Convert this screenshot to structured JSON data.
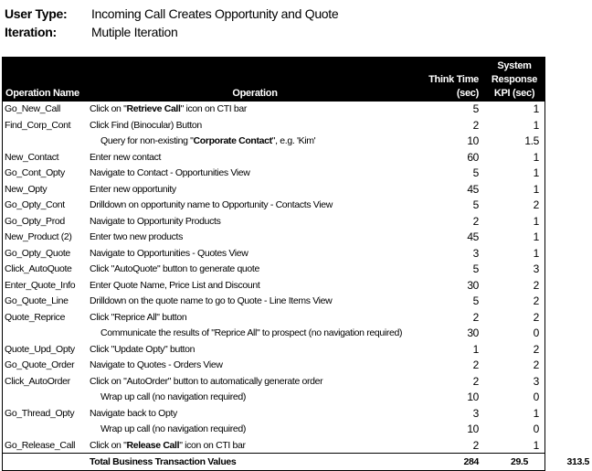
{
  "header": {
    "user_type_label": "User Type:",
    "user_type": "Incoming Call Creates Opportunity and Quote",
    "iteration_label": "Iteration:",
    "iteration": "Mutiple Iteration"
  },
  "table": {
    "columns": {
      "name": "Operation Name",
      "operation": "Operation",
      "think": [
        "Think Time",
        "(sec)"
      ],
      "kpi": [
        "System",
        "Response",
        "KPI (sec)"
      ]
    },
    "rows": [
      [
        "Go_New_Call",
        [
          "Click on \"",
          "Retrieve Call",
          "\" icon on CTI bar"
        ],
        5,
        1
      ],
      [
        "Find_Corp_Cont",
        [
          "Click Find (Binocular) Button"
        ],
        2,
        1
      ],
      [
        null,
        [
          "Query for non-existing \"",
          "Corporate Contact",
          "\", e.g. 'Kim'"
        ],
        10,
        1.5
      ],
      [
        "New_Contact",
        [
          "Enter new contact"
        ],
        60,
        1
      ],
      [
        "Go_Cont_Opty",
        [
          "Navigate to Contact - Opportunities View"
        ],
        5,
        1
      ],
      [
        "New_Opty",
        [
          "Enter new opportunity"
        ],
        45,
        1
      ],
      [
        "Go_Opty_Cont",
        [
          "Drilldown on opportunity name to Opportunity - Contacts View"
        ],
        5,
        2
      ],
      [
        "Go_Opty_Prod",
        [
          "Navigate to Opportunity Products"
        ],
        2,
        1
      ],
      [
        "New_Product (2)",
        [
          "Enter two new products"
        ],
        45,
        1
      ],
      [
        "Go_Opty_Quote",
        [
          "Navigate to Opportunities - Quotes View"
        ],
        3,
        1
      ],
      [
        "Click_AutoQuote",
        [
          "Click \"AutoQuote\" button to generate quote"
        ],
        5,
        3
      ],
      [
        "Enter_Quote_Info",
        [
          "Enter Quote Name, Price List and Discount"
        ],
        30,
        2
      ],
      [
        "Go_Quote_Line",
        [
          "Drilldown on the quote name to go to Quote - Line Items View"
        ],
        5,
        2
      ],
      [
        "Quote_Reprice",
        [
          "Click \"Reprice All\" button"
        ],
        2,
        2
      ],
      [
        null,
        [
          "Communicate the results of \"Reprice All\" to prospect (no navigation required)"
        ],
        30,
        0
      ],
      [
        "Quote_Upd_Opty",
        [
          "Click \"Update Opty\" button"
        ],
        1,
        2
      ],
      [
        "Go_Quote_Order",
        [
          "Navigate to Quotes - Orders View"
        ],
        2,
        2
      ],
      [
        "Click_AutoOrder",
        [
          "Click on \"AutoOrder\" button to automatically generate order"
        ],
        2,
        3
      ],
      [
        null,
        [
          "Wrap up call (no navigation required)"
        ],
        10,
        0
      ],
      [
        "Go_Thread_Opty",
        [
          "Navigate back to Opty"
        ],
        3,
        1
      ],
      [
        null,
        [
          "Wrap up call (no navigation required)"
        ],
        10,
        0
      ],
      [
        "Go_Release_Call",
        [
          "Click on \"",
          "Release Call",
          "\" icon on CTI bar"
        ],
        2,
        1
      ]
    ],
    "total": {
      "label": "Total Business Transaction Values",
      "think": 284,
      "kpi": 29.5,
      "sum": 313.5
    }
  }
}
